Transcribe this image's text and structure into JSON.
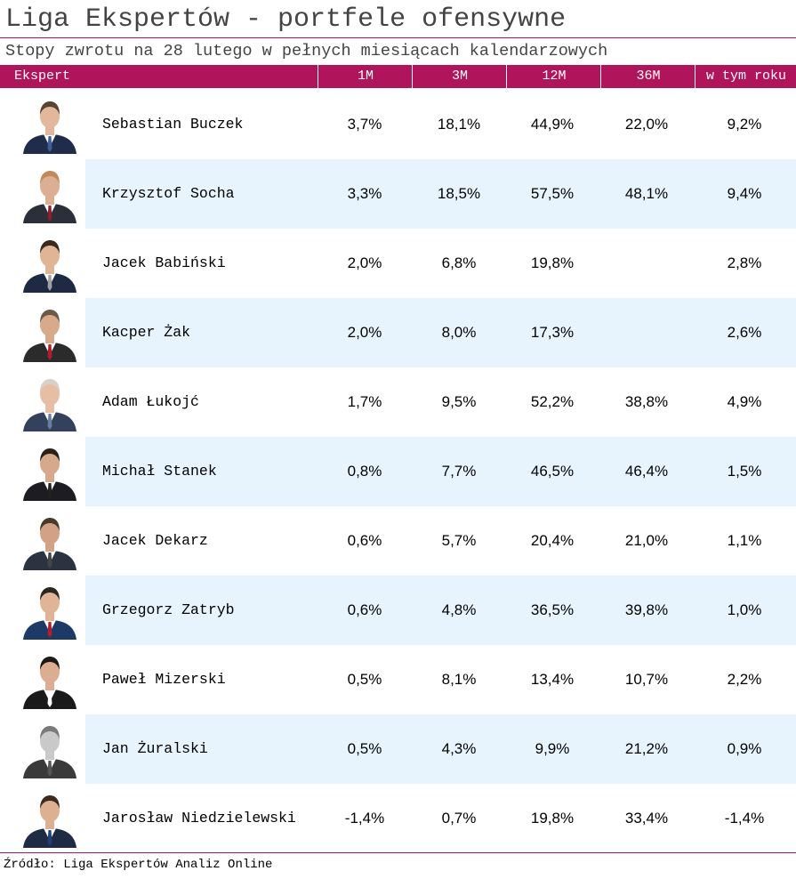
{
  "title": "Liga Ekspertów - portfele ofensywne",
  "subtitle": "Stopy zwrotu na 28 lutego w pełnych miesiącach kalendarzowych",
  "source": "Źródło: Liga Ekspertów Analiz Online",
  "colors": {
    "header": "#b0145a",
    "alt_row": "#e8f4fd"
  },
  "chart_data": {
    "type": "table",
    "columns": [
      "Ekspert",
      "1M",
      "3M",
      "12M",
      "36M",
      "w tym roku"
    ],
    "rows": [
      {
        "name": "Sebastian Buczek",
        "values": [
          "3,7%",
          "18,1%",
          "44,9%",
          "22,0%",
          "9,2%"
        ]
      },
      {
        "name": "Krzysztof Socha",
        "values": [
          "3,3%",
          "18,5%",
          "57,5%",
          "48,1%",
          "9,4%"
        ]
      },
      {
        "name": "Jacek Babiński",
        "values": [
          "2,0%",
          "6,8%",
          "19,8%",
          "",
          "2,8%"
        ]
      },
      {
        "name": "Kacper Żak",
        "values": [
          "2,0%",
          "8,0%",
          "17,3%",
          "",
          "2,6%"
        ]
      },
      {
        "name": "Adam Łukojć",
        "values": [
          "1,7%",
          "9,5%",
          "52,2%",
          "38,8%",
          "4,9%"
        ]
      },
      {
        "name": "Michał Stanek",
        "values": [
          "0,8%",
          "7,7%",
          "46,5%",
          "46,4%",
          "1,5%"
        ]
      },
      {
        "name": "Jacek Dekarz",
        "values": [
          "0,6%",
          "5,7%",
          "20,4%",
          "21,0%",
          "1,1%"
        ]
      },
      {
        "name": "Grzegorz Zatryb",
        "values": [
          "0,6%",
          "4,8%",
          "36,5%",
          "39,8%",
          "1,0%"
        ]
      },
      {
        "name": "Paweł Mizerski",
        "values": [
          "0,5%",
          "8,1%",
          "13,4%",
          "10,7%",
          "2,2%"
        ]
      },
      {
        "name": "Jan Żuralski",
        "values": [
          "0,5%",
          "4,3%",
          "9,9%",
          "21,2%",
          "0,9%"
        ]
      },
      {
        "name": "Jarosław Niedzielewski",
        "values": [
          "-1,4%",
          "0,7%",
          "19,8%",
          "33,4%",
          "-1,4%"
        ]
      }
    ]
  }
}
